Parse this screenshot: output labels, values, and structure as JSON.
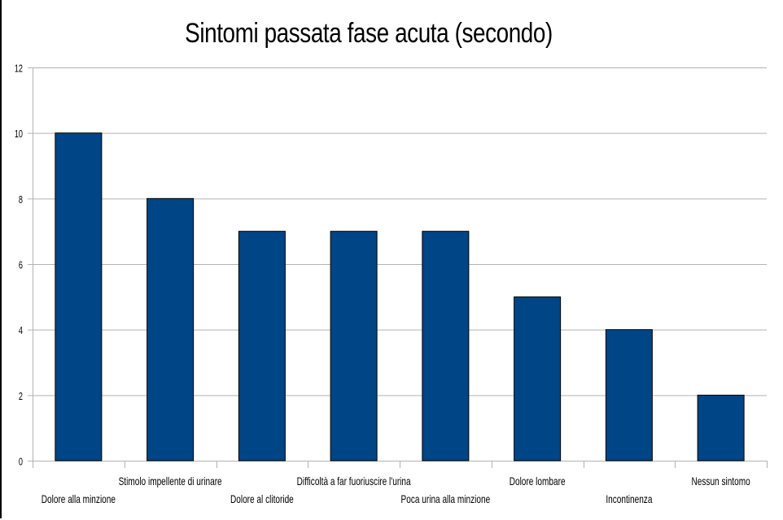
{
  "chart_data": {
    "type": "bar",
    "title": "Sintomi passata fase acuta (secondo)",
    "categories": [
      "Dolore alla minzione",
      "Stimolo impellente di urinare",
      "Dolore al clitoride",
      "Difficoltà a far fuoriuscire l'urina",
      "Poca urina alla minzione",
      "Dolore lombare",
      "Incontinenza",
      "Nessun sintomo"
    ],
    "values": [
      10,
      8,
      7,
      7,
      7,
      5,
      4,
      2
    ],
    "xlabel": "",
    "ylabel": "",
    "ylim": [
      0,
      12
    ],
    "yticks": [
      0,
      2,
      4,
      6,
      8,
      10,
      12
    ],
    "grid": true,
    "legend": "none",
    "bar_color": "#004586",
    "grid_color": "#b3b3b3"
  }
}
